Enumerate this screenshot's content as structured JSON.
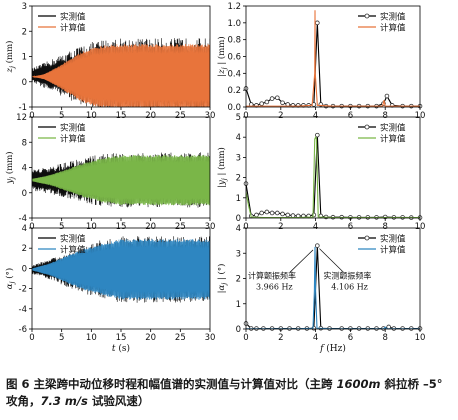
{
  "caption": {
    "lead": "图 6  主梁跨中动位移时程和幅值谱的实测值与计算值对比（主跨 ",
    "span": "1600m",
    "mid1": " 斜拉桥 ",
    "angle": "–5°",
    "mid2": "攻角，",
    "speed": "7.3 m/s",
    "tail": " 试验风速）"
  },
  "chart_data": [
    {
      "type": "line",
      "panel": "time-vertical",
      "ylabel": "z_j (mm)",
      "xlabel": "",
      "xlim": [
        0,
        30
      ],
      "ylim": [
        -1,
        3
      ],
      "xticks": [
        0,
        5,
        10,
        15,
        20,
        25,
        30
      ],
      "yticks": [
        -1,
        0,
        1,
        2,
        3
      ],
      "series": [
        {
          "name": "实测值",
          "color": "#000000",
          "amplitude_x": [
            0,
            2,
            4,
            6,
            8,
            10,
            12,
            14,
            30
          ],
          "amplitude": [
            0.25,
            0.45,
            0.65,
            0.85,
            1.05,
            1.2,
            1.3,
            1.35,
            1.35
          ],
          "mean": 0.25
        },
        {
          "name": "计算值",
          "color": "#e8743b",
          "amplitude_x": [
            0,
            2,
            4,
            6,
            8,
            10,
            12,
            14,
            30
          ],
          "amplitude": [
            0.0,
            0.1,
            0.35,
            0.65,
            0.95,
            1.15,
            1.25,
            1.3,
            1.3
          ],
          "mean": 0.2
        }
      ]
    },
    {
      "type": "line",
      "panel": "spectrum-vertical",
      "ylabel": "|z_j| (mm)",
      "xlabel": "",
      "xlim": [
        0,
        10
      ],
      "ylim": [
        0,
        1.2
      ],
      "xticks": [
        0,
        2,
        4,
        6,
        8,
        10
      ],
      "yticks": [
        0.0,
        0.2,
        0.4,
        0.6,
        0.8,
        1.0,
        1.2
      ],
      "series": [
        {
          "name": "实测值",
          "color": "#000000",
          "markers": "circle",
          "x": [
            0,
            0.3,
            0.6,
            0.9,
            1.2,
            1.5,
            1.8,
            2.1,
            2.4,
            2.7,
            3.0,
            3.3,
            3.6,
            3.9,
            4.1,
            4.3,
            4.6,
            5.0,
            5.5,
            6.0,
            6.5,
            7.0,
            7.5,
            7.9,
            8.1,
            8.4,
            9.0,
            9.5,
            10.0
          ],
          "y": [
            0.22,
            0.03,
            0.02,
            0.04,
            0.06,
            0.1,
            0.11,
            0.05,
            0.03,
            0.02,
            0.02,
            0.02,
            0.02,
            0.03,
            1.0,
            0.03,
            0.01,
            0.01,
            0.01,
            0.01,
            0.01,
            0.01,
            0.01,
            0.04,
            0.13,
            0.02,
            0.01,
            0.01,
            0.01
          ]
        },
        {
          "name": "计算值",
          "color": "#e8743b",
          "x": [
            0,
            0.5,
            1.0,
            2.0,
            3.0,
            3.8,
            3.95,
            3.966,
            3.98,
            4.1,
            5.0,
            6.0,
            7.0,
            7.85,
            7.93,
            8.0,
            9.0,
            10.0
          ],
          "y": [
            0.01,
            0.01,
            0.01,
            0.01,
            0.01,
            0.02,
            0.4,
            1.15,
            0.4,
            0.02,
            0.01,
            0.01,
            0.01,
            0.01,
            0.08,
            0.01,
            0.01,
            0.01
          ]
        }
      ]
    },
    {
      "type": "line",
      "panel": "time-lateral",
      "ylabel": "y_j (mm)",
      "xlabel": "",
      "xlim": [
        0,
        30
      ],
      "ylim": [
        -4,
        12
      ],
      "xticks": [
        0,
        5,
        10,
        15,
        20,
        25,
        30
      ],
      "yticks": [
        -4,
        0,
        4,
        8,
        12
      ],
      "series": [
        {
          "name": "实测值",
          "color": "#000000",
          "amplitude_x": [
            0,
            3,
            6,
            9,
            12,
            15,
            30
          ],
          "amplitude": [
            1.5,
            2.0,
            2.6,
            3.3,
            3.8,
            4.0,
            4.0
          ],
          "mean": 2.0
        },
        {
          "name": "计算值",
          "color": "#7ab648",
          "amplitude_x": [
            0,
            3,
            6,
            9,
            12,
            15,
            30
          ],
          "amplitude": [
            0.2,
            0.8,
            1.8,
            2.8,
            3.6,
            4.0,
            4.0
          ],
          "mean": 2.0
        }
      ]
    },
    {
      "type": "line",
      "panel": "spectrum-lateral",
      "ylabel": "|y_j| (mm)",
      "xlabel": "",
      "xlim": [
        0,
        10
      ],
      "ylim": [
        0,
        5
      ],
      "xticks": [
        0,
        2,
        4,
        6,
        8,
        10
      ],
      "yticks": [
        0,
        1,
        2,
        3,
        4,
        5
      ],
      "series": [
        {
          "name": "实测值",
          "color": "#000000",
          "markers": "circle",
          "x": [
            0,
            0.3,
            0.6,
            0.9,
            1.2,
            1.5,
            1.8,
            2.1,
            2.4,
            2.7,
            3.0,
            3.3,
            3.6,
            3.9,
            4.1,
            4.3,
            4.6,
            5.0,
            5.5,
            6.0,
            6.5,
            7.0,
            7.5,
            8.0,
            8.5,
            9.0,
            9.5,
            10.0
          ],
          "y": [
            1.7,
            0.1,
            0.15,
            0.25,
            0.3,
            0.25,
            0.25,
            0.2,
            0.15,
            0.12,
            0.1,
            0.1,
            0.1,
            0.15,
            4.1,
            0.1,
            0.05,
            0.04,
            0.04,
            0.03,
            0.03,
            0.03,
            0.03,
            0.05,
            0.03,
            0.03,
            0.02,
            0.02
          ]
        },
        {
          "name": "计算值",
          "color": "#7ab648",
          "x": [
            0,
            0.15,
            0.3,
            1.0,
            2.0,
            3.0,
            3.85,
            3.95,
            4.0,
            4.05,
            4.15,
            5.0,
            6.0,
            8.0,
            10.0
          ],
          "y": [
            1.3,
            0.6,
            0.05,
            0.02,
            0.02,
            0.02,
            0.05,
            3.9,
            4.0,
            3.9,
            0.05,
            0.02,
            0.02,
            0.02,
            0.02
          ]
        }
      ]
    },
    {
      "type": "line",
      "panel": "time-torsional",
      "ylabel": "α_j (°)",
      "xlabel": "t (s)",
      "xlim": [
        0,
        30
      ],
      "ylim": [
        -6,
        4
      ],
      "xticks": [
        0,
        5,
        10,
        15,
        20,
        25,
        30
      ],
      "yticks": [
        -6,
        -4,
        -2,
        0,
        2,
        4
      ],
      "series": [
        {
          "name": "实测值",
          "color": "#000000",
          "amplitude_x": [
            0,
            3,
            6,
            9,
            12,
            15,
            30
          ],
          "amplitude": [
            0.4,
            0.9,
            1.6,
            2.2,
            2.7,
            3.0,
            3.0
          ],
          "mean": -0.1
        },
        {
          "name": "计算值",
          "color": "#2e86c1",
          "amplitude_x": [
            0,
            3,
            6,
            9,
            12,
            15,
            30
          ],
          "amplitude": [
            0.1,
            0.6,
            1.4,
            2.1,
            2.6,
            3.0,
            3.0
          ],
          "mean": -0.1
        }
      ]
    },
    {
      "type": "line",
      "panel": "spectrum-torsional",
      "ylabel": "|α_j| (°)",
      "xlabel": "f (Hz)",
      "xlim": [
        0,
        10
      ],
      "ylim": [
        0,
        4
      ],
      "xticks": [
        0,
        2,
        4,
        6,
        8,
        10
      ],
      "yticks": [
        0,
        1,
        2,
        3,
        4
      ],
      "annotations": [
        {
          "text": "计算颤振频率",
          "text2": "3.966 Hz",
          "x": 3.966,
          "y": 3.25
        },
        {
          "text": "实测颤振频率",
          "text2": "4.106 Hz",
          "x": 4.106,
          "y": 3.3
        }
      ],
      "series": [
        {
          "name": "实测值",
          "color": "#000000",
          "markers": "circle",
          "x": [
            0,
            0.3,
            0.6,
            1.0,
            1.5,
            2.0,
            2.5,
            3.0,
            3.5,
            3.9,
            4.1,
            4.3,
            4.8,
            5.5,
            6.0,
            6.5,
            7.0,
            7.5,
            7.9,
            8.2,
            8.5,
            9.0,
            9.5,
            10.0
          ],
          "y": [
            0.22,
            0.02,
            0.02,
            0.02,
            0.02,
            0.02,
            0.02,
            0.02,
            0.02,
            0.03,
            3.3,
            0.03,
            0.02,
            0.02,
            0.02,
            0.02,
            0.02,
            0.02,
            0.02,
            0.08,
            0.02,
            0.02,
            0.02,
            0.02
          ]
        },
        {
          "name": "计算值",
          "color": "#2e86c1",
          "x": [
            0,
            1.0,
            2.0,
            3.0,
            3.85,
            3.93,
            3.966,
            4.0,
            4.08,
            5.0,
            6.0,
            7.0,
            7.9,
            8.0,
            8.1,
            9.0,
            10.0
          ],
          "y": [
            0.01,
            0.01,
            0.01,
            0.01,
            0.03,
            1.5,
            3.25,
            1.5,
            0.03,
            0.01,
            0.01,
            0.01,
            0.01,
            0.07,
            0.01,
            0.01,
            0.01
          ]
        }
      ]
    }
  ]
}
